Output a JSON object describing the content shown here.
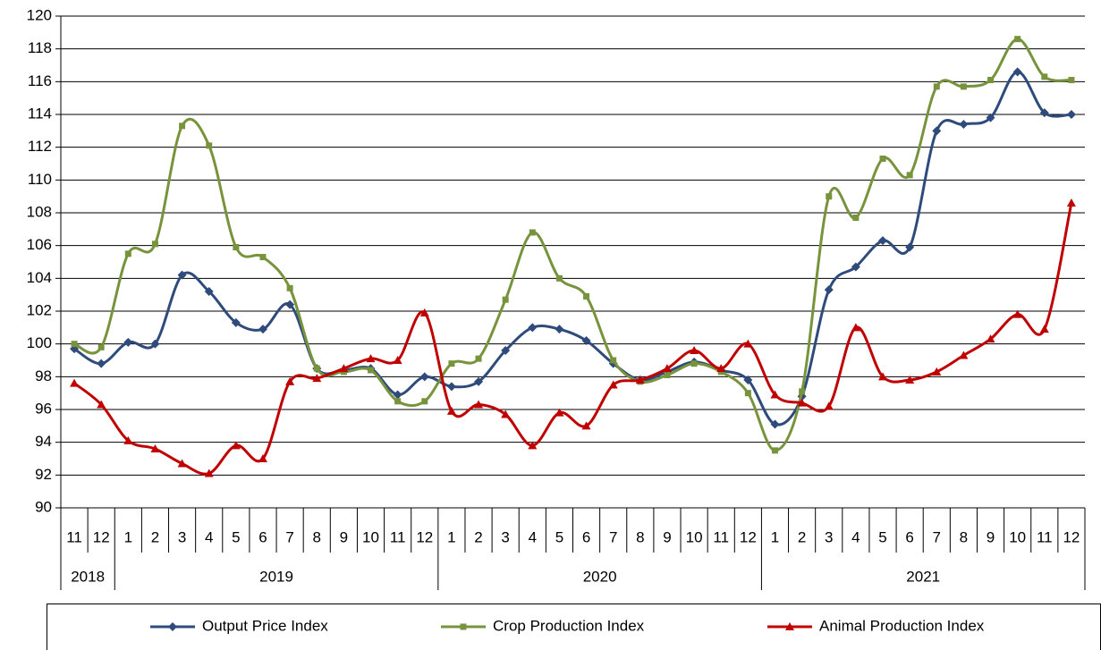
{
  "chart_data": {
    "type": "line",
    "category_groups": [
      {
        "label": "2018",
        "categories": [
          "11",
          "12"
        ]
      },
      {
        "label": "2019",
        "categories": [
          "1",
          "2",
          "3",
          "4",
          "5",
          "6",
          "7",
          "8",
          "9",
          "10",
          "11",
          "12"
        ]
      },
      {
        "label": "2020",
        "categories": [
          "1",
          "2",
          "3",
          "4",
          "5",
          "6",
          "7",
          "8",
          "9",
          "10",
          "11",
          "12"
        ]
      },
      {
        "label": "2021",
        "categories": [
          "1",
          "2",
          "3",
          "4",
          "5",
          "6",
          "7",
          "8",
          "9",
          "10",
          "11",
          "12"
        ]
      }
    ],
    "series": [
      {
        "name": "Output Price Index",
        "color": "#2f4b7c",
        "marker": "diamond",
        "values": [
          99.7,
          98.8,
          100.1,
          100.0,
          104.2,
          103.2,
          101.3,
          100.9,
          102.4,
          98.5,
          98.4,
          98.5,
          96.9,
          98.0,
          97.4,
          97.7,
          99.6,
          101.0,
          100.9,
          100.2,
          98.8,
          97.8,
          98.3,
          98.9,
          98.4,
          97.8,
          95.1,
          96.8,
          103.3,
          104.7,
          106.3,
          105.9,
          113.0,
          113.4,
          113.8,
          116.6,
          114.1,
          114.0
        ]
      },
      {
        "name": "Crop Production Index",
        "color": "#77933c",
        "marker": "square",
        "values": [
          100.0,
          99.8,
          105.5,
          106.1,
          113.3,
          112.1,
          105.9,
          105.3,
          103.4,
          98.5,
          98.3,
          98.4,
          96.5,
          96.5,
          98.8,
          99.1,
          102.7,
          106.8,
          104.0,
          102.9,
          99.0,
          97.7,
          98.1,
          98.8,
          98.3,
          97.0,
          93.5,
          97.1,
          109.0,
          107.7,
          111.3,
          110.3,
          115.7,
          115.7,
          116.1,
          118.6,
          116.3,
          116.1
        ]
      },
      {
        "name": "Animal Production Index",
        "color": "#c00000",
        "marker": "triangle",
        "values": [
          97.6,
          96.3,
          94.1,
          93.6,
          92.7,
          92.1,
          93.8,
          93.0,
          97.7,
          97.9,
          98.5,
          99.1,
          99.0,
          101.9,
          95.9,
          96.3,
          95.7,
          93.8,
          95.8,
          95.0,
          97.5,
          97.8,
          98.5,
          99.6,
          98.5,
          100.0,
          96.9,
          96.4,
          96.2,
          101.0,
          98.0,
          97.8,
          98.3,
          99.3,
          100.3,
          101.8,
          100.9,
          108.6
        ]
      }
    ],
    "ylim": [
      90,
      120
    ],
    "yticks": [
      90,
      92,
      94,
      96,
      98,
      100,
      102,
      104,
      106,
      108,
      110,
      112,
      114,
      116,
      118,
      120
    ],
    "grid": true,
    "legend": "bottom"
  }
}
